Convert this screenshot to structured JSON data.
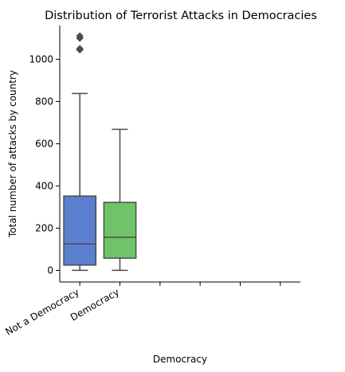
{
  "chart_data": {
    "type": "box",
    "title": "Distribution of Terrorist Attacks in Democracies",
    "xlabel": "Democracy",
    "ylabel": "Total number of attacks by country",
    "ylim": [
      -55,
      1160
    ],
    "yticks": [
      0,
      200,
      400,
      600,
      800,
      1000
    ],
    "categories": [
      "Not a Democracy",
      "Democracy"
    ],
    "slots": 6,
    "grid": false,
    "series": [
      {
        "category": "Not a Democracy",
        "color": "#5a7fcf",
        "min": 0,
        "q1": 25,
        "median": 125,
        "q3": 352,
        "max": 838,
        "outliers": [
          1045,
          1050,
          1100,
          1110
        ]
      },
      {
        "category": "Democracy",
        "color": "#6fc46a",
        "min": 0,
        "q1": 58,
        "median": 157,
        "q3": 322,
        "max": 668,
        "outliers": []
      }
    ]
  }
}
